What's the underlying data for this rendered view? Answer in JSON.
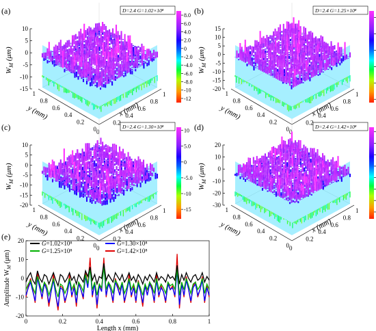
{
  "chart_data": [
    {
      "type": "surface3d",
      "panel_label": "(a)",
      "annotation": "D=2.4  G=1.02×10⁸",
      "zlabel": "W_M (μm)",
      "xlabel": "x (mm)",
      "ylabel": "y (mm)",
      "z_ticks": [
        10,
        5,
        0,
        -5,
        -10,
        -15
      ],
      "y_ticks": [
        1.0,
        0.8,
        0.6,
        0.4,
        0.2,
        0
      ],
      "x_ticks": [
        0.2,
        0.4,
        0.6,
        0.8,
        1.0
      ],
      "colorbar": {
        "ticks": [
          "8.0",
          "6.0",
          "4.0",
          "2.0",
          "0",
          "-2.0",
          "-4.0",
          "-6.0",
          "-8.0",
          "-10",
          "-12"
        ],
        "max": 9,
        "min": -13
      },
      "zlim": [
        -15,
        10
      ],
      "z_range_data": [
        -13,
        9
      ]
    },
    {
      "type": "surface3d",
      "panel_label": "(b)",
      "annotation": "D=2.4  G=1.25×10⁸",
      "zlabel": "W_M (μm)",
      "xlabel": "x (mm)",
      "ylabel": "y (mm)",
      "z_ticks": [
        15,
        10,
        5,
        0,
        -5,
        -10,
        -15,
        -20
      ],
      "y_ticks": [
        1.0,
        0.8,
        0.6,
        0.4,
        0.2,
        0
      ],
      "x_ticks": [
        0.2,
        0.4,
        0.6,
        0.8,
        1.0
      ],
      "colorbar": {
        "ticks": [
          "10",
          "5.0",
          "0",
          "-5.0",
          "-10",
          "-15"
        ],
        "max": 12,
        "min": -16
      },
      "zlim": [
        -20,
        15
      ],
      "z_range_data": [
        -16,
        12
      ]
    },
    {
      "type": "surface3d",
      "panel_label": "(c)",
      "annotation": "D=2.4  G=1.30×10⁸",
      "zlabel": "W_M (μm)",
      "xlabel": "x (mm)",
      "ylabel": "y (mm)",
      "z_ticks": [
        10,
        5,
        0,
        -5,
        -10,
        -15,
        -20
      ],
      "y_ticks": [
        1.0,
        0.8,
        0.6,
        0.4,
        0.2,
        0
      ],
      "x_ticks": [
        0.2,
        0.4,
        0.6,
        0.8,
        1.0
      ],
      "colorbar": {
        "ticks": [
          "10",
          "5.0",
          "0",
          "-5.0",
          "-10",
          "-15"
        ],
        "max": 11,
        "min": -18
      },
      "zlim": [
        -20,
        10
      ],
      "z_range_data": [
        -18,
        11
      ]
    },
    {
      "type": "surface3d",
      "panel_label": "(d)",
      "annotation": "D=2.4  G=1.42×10⁸",
      "zlabel": "W_M (μm)",
      "xlabel": "x (mm)",
      "ylabel": "y (mm)",
      "z_ticks": [
        20,
        10,
        0,
        -10,
        -20,
        -30
      ],
      "y_ticks": [
        1.0,
        0.8,
        0.6,
        0.4,
        0.2,
        0
      ],
      "x_ticks": [
        0.2,
        0.4,
        0.6,
        0.8,
        1.0
      ],
      "colorbar": {
        "ticks": [
          "15",
          "10",
          "5.0",
          "0",
          "-5.0",
          "-10",
          "-15",
          "-20"
        ],
        "max": 17,
        "min": -23
      },
      "zlim": [
        -30,
        20
      ],
      "z_range_data": [
        -23,
        17
      ]
    },
    {
      "type": "line",
      "panel_label": "(e)",
      "xlabel": "Length x (mm)",
      "ylabel": "Amplitude W_M (μm)",
      "xlim": [
        0,
        1.0
      ],
      "ylim": [
        -20,
        20
      ],
      "x_ticks": [
        0,
        0.2,
        0.4,
        0.6,
        0.8,
        1.0
      ],
      "y_ticks": [
        20,
        10,
        0,
        -10,
        -20
      ],
      "legend_position": "top-left",
      "x": [
        0,
        0.0125,
        0.025,
        0.0375,
        0.05,
        0.0625,
        0.075,
        0.0875,
        0.1,
        0.1125,
        0.125,
        0.1375,
        0.15,
        0.1625,
        0.175,
        0.1875,
        0.2,
        0.2125,
        0.225,
        0.2375,
        0.25,
        0.2625,
        0.275,
        0.2875,
        0.3,
        0.3125,
        0.325,
        0.3375,
        0.35,
        0.3625,
        0.375,
        0.3875,
        0.4,
        0.4125,
        0.425,
        0.4375,
        0.45,
        0.4625,
        0.475,
        0.4875,
        0.5,
        0.5125,
        0.525,
        0.5375,
        0.55,
        0.5625,
        0.575,
        0.5875,
        0.6,
        0.6125,
        0.625,
        0.6375,
        0.65,
        0.6625,
        0.675,
        0.6875,
        0.7,
        0.7125,
        0.725,
        0.7375,
        0.75,
        0.7625,
        0.775,
        0.7875,
        0.8,
        0.8125,
        0.825,
        0.8375,
        0.85,
        0.8625,
        0.875,
        0.8875,
        0.9,
        0.9125,
        0.925,
        0.9375,
        0.95,
        0.9625,
        0.975,
        0.9875,
        1.0
      ],
      "series": [
        {
          "name": "G=1.02×10⁸",
          "color": "#000000",
          "values": [
            -2,
            1,
            3,
            -1,
            -3,
            4,
            0,
            -2,
            2,
            1,
            -3,
            0,
            3,
            -1,
            -4,
            2,
            1,
            -2,
            0,
            3,
            -1,
            1,
            -3,
            2,
            0,
            -2,
            4,
            1,
            6,
            -1,
            2,
            -3,
            1,
            0,
            8,
            -1,
            2,
            0,
            -2,
            3,
            1,
            -1,
            2,
            -2,
            0,
            3,
            -1,
            1,
            -2,
            2,
            0,
            -3,
            1,
            -1,
            2,
            0,
            -2,
            3,
            -1,
            1,
            0,
            -2,
            2,
            0,
            1,
            -1,
            7,
            -3,
            2,
            -1,
            3,
            0,
            -2,
            1,
            2,
            -1,
            0,
            3,
            -2,
            1,
            -1
          ]
        },
        {
          "name": "G=1.25×10⁸",
          "color": "#00b000",
          "values": [
            -6,
            -3,
            -1,
            -5,
            -8,
            1,
            -3,
            -7,
            -2,
            -4,
            -9,
            -5,
            0,
            -6,
            -10,
            -3,
            -4,
            -8,
            -5,
            0,
            -6,
            -3,
            -9,
            -2,
            -4,
            -7,
            2,
            -3,
            5,
            -6,
            -2,
            -9,
            -3,
            -5,
            6,
            -6,
            -2,
            -4,
            -8,
            -1,
            -3,
            -6,
            -2,
            -8,
            -5,
            0,
            -6,
            -3,
            -8,
            -2,
            -5,
            -9,
            -3,
            -6,
            -2,
            -4,
            -8,
            0,
            -6,
            -3,
            -5,
            -8,
            -2,
            -4,
            -3,
            -6,
            5,
            -9,
            -2,
            -6,
            0,
            -4,
            -8,
            -3,
            -2,
            -6,
            -4,
            0,
            -8,
            -3,
            -6
          ]
        },
        {
          "name": "G=1.30×10⁸",
          "color": "#0000ff",
          "values": [
            -9,
            -5,
            -2,
            -7,
            -12,
            0,
            -5,
            -10,
            -3,
            -6,
            -13,
            -7,
            -1,
            -9,
            -15,
            -5,
            -6,
            -12,
            -8,
            -1,
            -9,
            -5,
            -13,
            -3,
            -6,
            -10,
            1,
            -5,
            6,
            -9,
            -3,
            -14,
            -4,
            -7,
            7,
            -9,
            -3,
            -6,
            -12,
            -2,
            -5,
            -9,
            -3,
            -12,
            -7,
            -1,
            -9,
            -5,
            -12,
            -3,
            -7,
            -13,
            -4,
            -9,
            -3,
            -6,
            -12,
            -1,
            -9,
            -5,
            -7,
            -12,
            -3,
            -6,
            -5,
            -9,
            4,
            -14,
            -3,
            -9,
            -1,
            -6,
            -12,
            -5,
            -3,
            -9,
            -6,
            -1,
            -12,
            -5,
            -9
          ]
        },
        {
          "name": "G=1.42×10⁸",
          "color": "#e00000",
          "values": [
            -10,
            -4,
            0,
            -6,
            -13,
            3,
            -4,
            -11,
            -2,
            -6,
            -15,
            -7,
            2,
            -9,
            -17,
            -4,
            -5,
            -13,
            -8,
            2,
            -10,
            -4,
            -15,
            -2,
            -6,
            -11,
            4,
            -4,
            11,
            -10,
            -2,
            -16,
            -3,
            -7,
            11,
            -10,
            -2,
            -6,
            -13,
            0,
            -4,
            -9,
            -2,
            -13,
            -7,
            2,
            -10,
            -4,
            -13,
            -1,
            -7,
            -15,
            -3,
            -9,
            -2,
            -5,
            -13,
            2,
            -10,
            -4,
            -7,
            -13,
            -2,
            -6,
            -4,
            -10,
            13,
            -16,
            -2,
            -10,
            1,
            -6,
            -13,
            -4,
            -2,
            -10,
            -6,
            1,
            -13,
            -4,
            -10
          ]
        }
      ]
    }
  ]
}
